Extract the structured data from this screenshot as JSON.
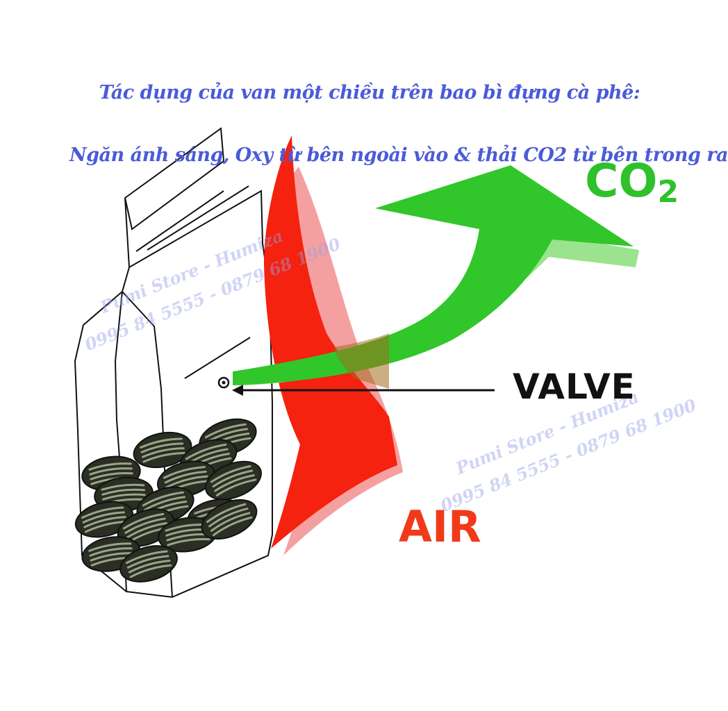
{
  "title": {
    "line1": "Tác dụng của van một chiều trên bao bì đựng cà phê:",
    "line2": "Ngăn ánh sáng, Oxy từ bên ngoài vào & thải CO2 từ bên trong ra"
  },
  "labels": {
    "valve": "VALVE",
    "air": "AIR",
    "co2_main": "CO",
    "co2_sub": "2"
  },
  "watermarks": {
    "store": "Pumi Store - Humiza",
    "phones": "0995 84 5555 - 0879 68 1900"
  },
  "colors": {
    "title": "#4a5bd8",
    "air": "#f03a1a",
    "co2": "#2fc12b",
    "valve": "#111111",
    "beans": "#2b2f23",
    "bean_stripe": "#9aa48a"
  }
}
